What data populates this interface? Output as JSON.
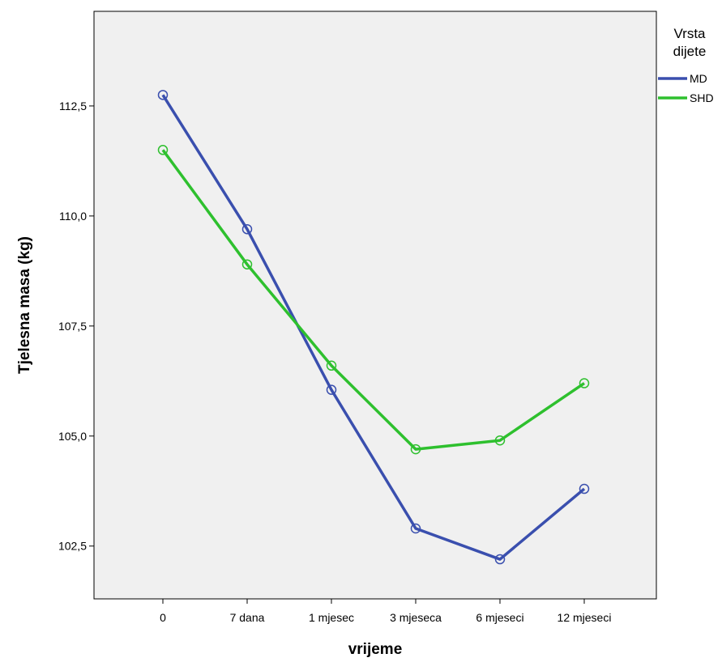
{
  "chart_data": {
    "type": "line",
    "title": "",
    "xlabel": "vrijeme",
    "ylabel": "Tjelesna masa (kg)",
    "categories": [
      "0",
      "7 dana",
      "1 mjesec",
      "3 mjeseca",
      "6 mjeseci",
      "12 mjeseci"
    ],
    "ylim": [
      101.3,
      114.65
    ],
    "yticks": [
      102.5,
      105.0,
      107.5,
      110.0,
      112.5
    ],
    "ytick_labels": [
      "102,5",
      "105,0",
      "107,5",
      "110,0",
      "112,5"
    ],
    "grid": false,
    "plot_background": "#f0f0f0",
    "legend": {
      "title_line1": "Vrsta",
      "title_line2": "dijete",
      "placement": "right"
    },
    "series": [
      {
        "name": "MD",
        "color": "#3a4fae",
        "values": [
          112.75,
          109.7,
          106.05,
          102.9,
          102.2,
          103.8
        ]
      },
      {
        "name": "SHD",
        "color": "#2ec02e",
        "values": [
          111.5,
          108.9,
          106.6,
          104.7,
          104.9,
          106.2
        ]
      }
    ]
  }
}
